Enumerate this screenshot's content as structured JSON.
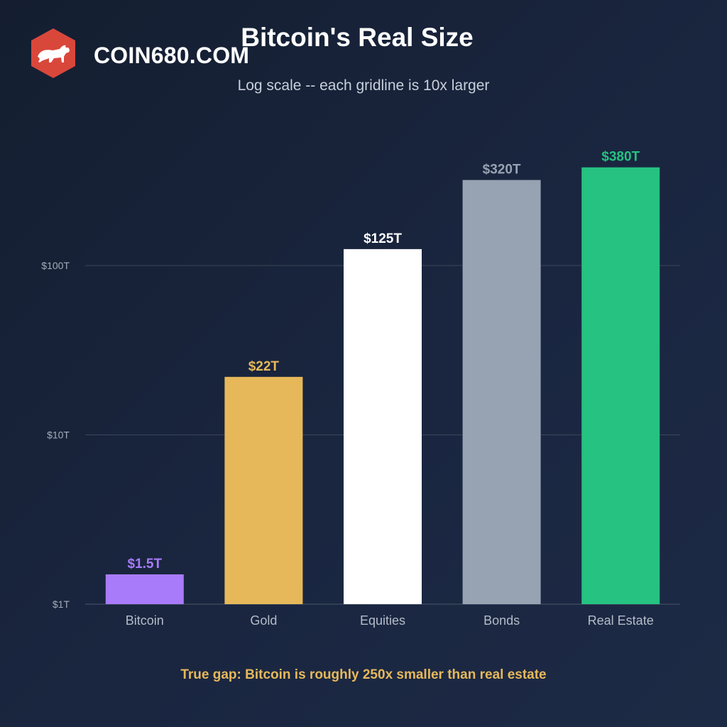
{
  "brand": {
    "name": "COIN680.COM",
    "logo_icon": "bull-icon",
    "logo_color": "#d9473b"
  },
  "chart_data": {
    "type": "bar",
    "title": "Bitcoin's Real Size",
    "subtitle": "Log scale -- each gridline is 10x larger",
    "y_scale": "log",
    "y_unit": "trillion USD",
    "ylim": [
      1,
      400
    ],
    "y_ticks": [
      {
        "value": 1,
        "label": "$1T"
      },
      {
        "value": 10,
        "label": "$10T"
      },
      {
        "value": 100,
        "label": "$100T"
      }
    ],
    "grid": true,
    "categories": [
      "Bitcoin",
      "Gold",
      "Equities",
      "Bonds",
      "Real Estate"
    ],
    "values": [
      1.5,
      22,
      125,
      320,
      380
    ],
    "value_labels": [
      "$1.5T",
      "$22T",
      "$125T",
      "$320T",
      "$380T"
    ],
    "colors": [
      "#a77bfa",
      "#e6b85a",
      "#ffffff",
      "#97a3b2",
      "#25c281"
    ],
    "annotation": "True gap: Bitcoin is roughly 250x smaller than real estate"
  }
}
